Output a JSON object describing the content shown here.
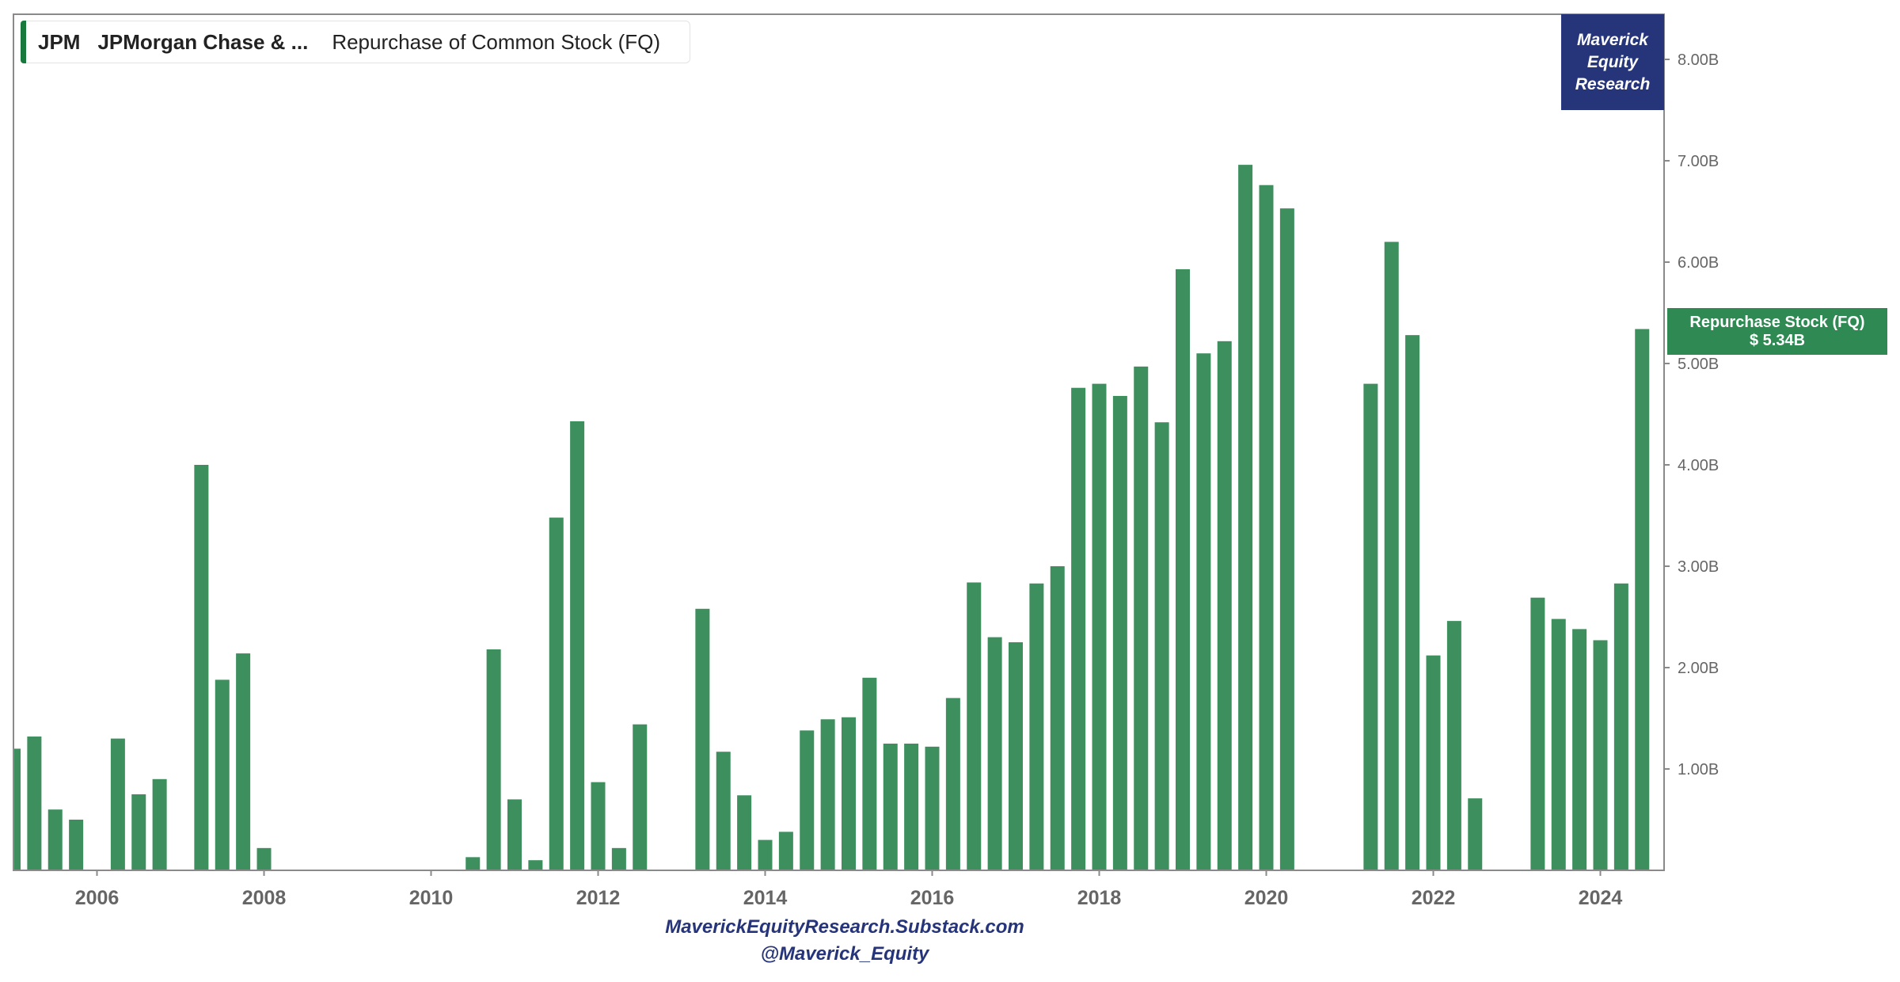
{
  "legend": {
    "ticker": "JPM",
    "company": "JPMorgan Chase & ...",
    "metric": "Repurchase of Common Stock (FQ)",
    "swatch_color": "#177a3c"
  },
  "brand": {
    "line1": "Maverick",
    "line2": "Equity",
    "line3": "Research",
    "bg_color": "#26347a"
  },
  "callout": {
    "label": "Repurchase Stock (FQ)",
    "value": "$ 5.34B",
    "bg_color": "#2e8a52"
  },
  "footer": {
    "line1": "MaverickEquityResearch.Substack.com",
    "line2": "@Maverick_Equity"
  },
  "chart_data": {
    "type": "bar",
    "title": "Repurchase of Common Stock (FQ)",
    "bar_color": "#3d8f5e",
    "y_axis_side": "right",
    "ylim": [
      0,
      8.5
    ],
    "y_unit": "B",
    "y_ticks": [
      {
        "value": 1,
        "label": "1.00B"
      },
      {
        "value": 2,
        "label": "2.00B"
      },
      {
        "value": 3,
        "label": "3.00B"
      },
      {
        "value": 4,
        "label": "4.00B"
      },
      {
        "value": 5,
        "label": "5.00B"
      },
      {
        "value": 6,
        "label": "6.00B"
      },
      {
        "value": 7,
        "label": "7.00B"
      },
      {
        "value": 8,
        "label": "8.00B"
      }
    ],
    "xlim": [
      2005.0,
      2024.86
    ],
    "x_ticks": [
      {
        "value": 2006,
        "label": "2006"
      },
      {
        "value": 2008,
        "label": "2008"
      },
      {
        "value": 2010,
        "label": "2010"
      },
      {
        "value": 2012,
        "label": "2012"
      },
      {
        "value": 2014,
        "label": "2014"
      },
      {
        "value": 2016,
        "label": "2016"
      },
      {
        "value": 2018,
        "label": "2018"
      },
      {
        "value": 2020,
        "label": "2020"
      },
      {
        "value": 2022,
        "label": "2022"
      },
      {
        "value": 2024,
        "label": "2024"
      }
    ],
    "series": [
      {
        "values": [
          {
            "x": 2005.0,
            "y": 1.2
          },
          {
            "x": 2005.25,
            "y": 1.32
          },
          {
            "x": 2005.5,
            "y": 0.6
          },
          {
            "x": 2005.75,
            "y": 0.5
          },
          {
            "x": 2006.25,
            "y": 1.3
          },
          {
            "x": 2006.5,
            "y": 0.75
          },
          {
            "x": 2006.75,
            "y": 0.9
          },
          {
            "x": 2007.25,
            "y": 4.0
          },
          {
            "x": 2007.5,
            "y": 1.88
          },
          {
            "x": 2007.75,
            "y": 2.14
          },
          {
            "x": 2008.0,
            "y": 0.22
          },
          {
            "x": 2010.5,
            "y": 0.13
          },
          {
            "x": 2010.75,
            "y": 2.18
          },
          {
            "x": 2011.0,
            "y": 0.7
          },
          {
            "x": 2011.25,
            "y": 0.1
          },
          {
            "x": 2011.5,
            "y": 3.48
          },
          {
            "x": 2011.75,
            "y": 4.43
          },
          {
            "x": 2012.0,
            "y": 0.87
          },
          {
            "x": 2012.25,
            "y": 0.22
          },
          {
            "x": 2012.5,
            "y": 1.44
          },
          {
            "x": 2013.25,
            "y": 2.58
          },
          {
            "x": 2013.5,
            "y": 1.17
          },
          {
            "x": 2013.75,
            "y": 0.74
          },
          {
            "x": 2014.0,
            "y": 0.3
          },
          {
            "x": 2014.25,
            "y": 0.38
          },
          {
            "x": 2014.5,
            "y": 1.38
          },
          {
            "x": 2014.75,
            "y": 1.49
          },
          {
            "x": 2015.0,
            "y": 1.51
          },
          {
            "x": 2015.25,
            "y": 1.9
          },
          {
            "x": 2015.5,
            "y": 1.25
          },
          {
            "x": 2015.75,
            "y": 1.25
          },
          {
            "x": 2016.0,
            "y": 1.22
          },
          {
            "x": 2016.25,
            "y": 1.7
          },
          {
            "x": 2016.5,
            "y": 2.84
          },
          {
            "x": 2016.75,
            "y": 2.3
          },
          {
            "x": 2017.0,
            "y": 2.25
          },
          {
            "x": 2017.25,
            "y": 2.83
          },
          {
            "x": 2017.5,
            "y": 3.0
          },
          {
            "x": 2017.75,
            "y": 4.76
          },
          {
            "x": 2018.0,
            "y": 4.8
          },
          {
            "x": 2018.25,
            "y": 4.68
          },
          {
            "x": 2018.5,
            "y": 4.97
          },
          {
            "x": 2018.75,
            "y": 4.42
          },
          {
            "x": 2019.0,
            "y": 5.93
          },
          {
            "x": 2019.25,
            "y": 5.1
          },
          {
            "x": 2019.5,
            "y": 5.22
          },
          {
            "x": 2019.75,
            "y": 6.96
          },
          {
            "x": 2020.0,
            "y": 6.76
          },
          {
            "x": 2020.25,
            "y": 6.53
          },
          {
            "x": 2021.25,
            "y": 4.8
          },
          {
            "x": 2021.5,
            "y": 6.2
          },
          {
            "x": 2021.75,
            "y": 5.28
          },
          {
            "x": 2022.0,
            "y": 2.12
          },
          {
            "x": 2022.25,
            "y": 2.46
          },
          {
            "x": 2022.5,
            "y": 0.71
          },
          {
            "x": 2023.25,
            "y": 2.69
          },
          {
            "x": 2023.5,
            "y": 2.48
          },
          {
            "x": 2023.75,
            "y": 2.38
          },
          {
            "x": 2024.0,
            "y": 2.27
          },
          {
            "x": 2024.25,
            "y": 2.83
          },
          {
            "x": 2024.5,
            "y": 5.34
          }
        ]
      }
    ]
  }
}
